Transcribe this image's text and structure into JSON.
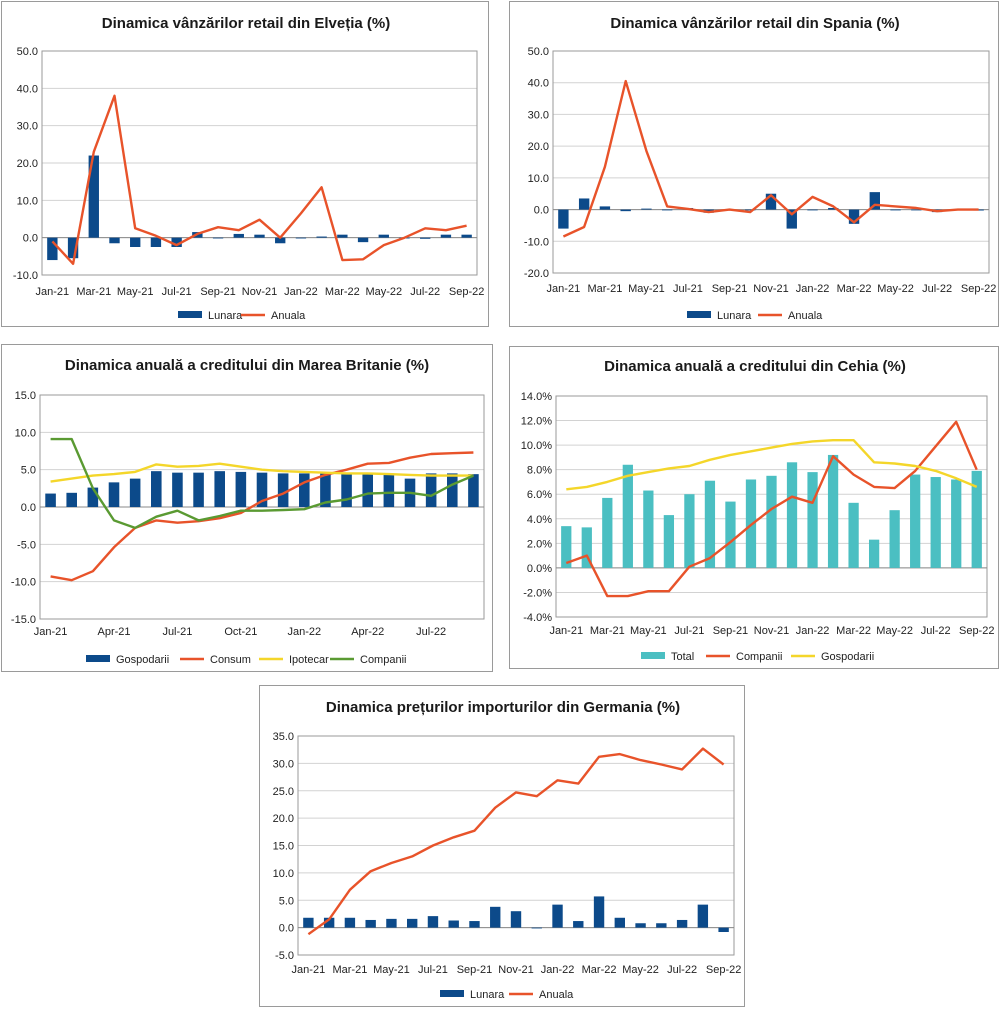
{
  "colors": {
    "navy": "#0c4a8a",
    "orange": "#e8532a",
    "yellow": "#f4d62a",
    "green": "#5a9a32",
    "teal": "#4bbfc2",
    "grid": "#d2d2d2",
    "axis": "#9a9a9a"
  },
  "chart_data": [
    {
      "type": "bar+line",
      "title": "Dinamica vânzărilor retail din Elveția (%)",
      "x": [
        "Jan-21",
        "Feb-21",
        "Mar-21",
        "Apr-21",
        "May-21",
        "Jun-21",
        "Jul-21",
        "Aug-21",
        "Sep-21",
        "Oct-21",
        "Nov-21",
        "Dec-21",
        "Jan-22",
        "Feb-22",
        "Mar-22",
        "Apr-22",
        "May-22",
        "Jun-22",
        "Jul-22",
        "Aug-22",
        "Sep-22"
      ],
      "tick_labels": [
        "Jan-21",
        "Mar-21",
        "May-21",
        "Jul-21",
        "Sep-21",
        "Nov-21",
        "Jan-22",
        "Mar-22",
        "May-22",
        "Jul-22",
        "Sep-22"
      ],
      "y_tick_labels": [
        "-10.0",
        "0.0",
        "10.0",
        "20.0",
        "30.0",
        "40.0",
        "50.0"
      ],
      "ylim": [
        -10,
        50
      ],
      "series": [
        {
          "name": "Lunara",
          "kind": "bar",
          "color": "#0c4a8a",
          "values": [
            -6.0,
            -5.5,
            22.0,
            -1.5,
            -2.5,
            -2.5,
            -2.5,
            1.5,
            0.0,
            1.0,
            0.8,
            -1.5,
            0.0,
            0.3,
            0.8,
            -1.2,
            0.8,
            0.0,
            -0.3,
            0.8,
            0.8
          ]
        },
        {
          "name": "Anuala",
          "kind": "line",
          "color": "#e8532a",
          "values": [
            -1.0,
            -7.0,
            23.0,
            38.0,
            2.5,
            0.5,
            -2.0,
            1.0,
            2.8,
            2.0,
            4.8,
            0.0,
            6.5,
            13.5,
            -6.0,
            -5.8,
            -2.0,
            0.0,
            2.5,
            2.0,
            3.2
          ]
        }
      ]
    },
    {
      "type": "bar+line",
      "title": "Dinamica vânzărilor retail din Spania (%)",
      "x": [
        "Jan-21",
        "Feb-21",
        "Mar-21",
        "Apr-21",
        "May-21",
        "Jun-21",
        "Jul-21",
        "Aug-21",
        "Sep-21",
        "Oct-21",
        "Nov-21",
        "Dec-21",
        "Jan-22",
        "Feb-22",
        "Mar-22",
        "Apr-22",
        "May-22",
        "Jun-22",
        "Jul-22",
        "Aug-22",
        "Sep-22"
      ],
      "tick_labels": [
        "Jan-21",
        "Mar-21",
        "May-21",
        "Jul-21",
        "Sep-21",
        "Nov-21",
        "Jan-22",
        "Mar-22",
        "May-22",
        "Jul-22",
        "Sep-22"
      ],
      "y_tick_labels": [
        "-20.0",
        "-10.0",
        "0.0",
        "10.0",
        "20.0",
        "30.0",
        "40.0",
        "50.0"
      ],
      "ylim": [
        -20,
        50
      ],
      "series": [
        {
          "name": "Lunara",
          "kind": "bar",
          "color": "#0c4a8a",
          "values": [
            -6.0,
            3.5,
            1.0,
            -0.5,
            0.3,
            0.0,
            0.5,
            -1.0,
            0.0,
            0.0,
            5.0,
            -6.0,
            0.0,
            0.5,
            -4.5,
            5.5,
            0.0,
            -0.2,
            -0.8,
            0.0,
            -0.3
          ]
        },
        {
          "name": "Anuala",
          "kind": "line",
          "color": "#e8532a",
          "values": [
            -8.5,
            -5.5,
            13.5,
            40.5,
            18.5,
            1.0,
            0.2,
            -0.8,
            0.0,
            -0.8,
            4.5,
            -1.5,
            4.0,
            1.0,
            -4.0,
            1.5,
            1.0,
            0.5,
            -0.5,
            0.0,
            0.0
          ]
        }
      ]
    },
    {
      "type": "bar+line",
      "title": "Dinamica anuală a creditului din Marea Britanie (%)",
      "x": [
        "Jan-21",
        "Feb-21",
        "Mar-21",
        "Apr-21",
        "May-21",
        "Jun-21",
        "Jul-21",
        "Aug-21",
        "Sep-21",
        "Oct-21",
        "Nov-21",
        "Dec-21",
        "Jan-22",
        "Feb-22",
        "Mar-22",
        "Apr-22",
        "May-22",
        "Jun-22",
        "Jul-22",
        "Aug-22",
        "Sep-22"
      ],
      "tick_labels": [
        "Jan-21",
        "Apr-21",
        "Jul-21",
        "Oct-21",
        "Jan-22",
        "Apr-22",
        "Jul-22"
      ],
      "tick_every": 3,
      "y_tick_labels": [
        "-15.0",
        "-10.0",
        "-5.0",
        "0.0",
        "5.0",
        "10.0",
        "15.0"
      ],
      "ylim": [
        -15,
        15
      ],
      "series": [
        {
          "name": "Gospodarii",
          "kind": "bar",
          "color": "#0c4a8a",
          "values": [
            1.8,
            1.9,
            2.6,
            3.3,
            3.8,
            4.8,
            4.6,
            4.6,
            4.8,
            4.7,
            4.6,
            4.5,
            4.5,
            4.6,
            4.4,
            4.4,
            4.5,
            3.8,
            4.5,
            4.5,
            4.4
          ]
        },
        {
          "name": "Consum",
          "kind": "line",
          "color": "#e8532a",
          "values": [
            -9.3,
            -9.8,
            -8.6,
            -5.4,
            -2.8,
            -1.8,
            -2.1,
            -1.9,
            -1.5,
            -0.8,
            0.8,
            1.8,
            3.3,
            4.3,
            5.0,
            5.8,
            5.9,
            6.6,
            7.1,
            7.2,
            7.3
          ]
        },
        {
          "name": "Ipotecar",
          "kind": "line",
          "color": "#f4d62a",
          "values": [
            3.4,
            3.8,
            4.2,
            4.4,
            4.7,
            5.7,
            5.4,
            5.5,
            5.8,
            5.4,
            5.0,
            4.8,
            4.7,
            4.6,
            4.5,
            4.5,
            4.4,
            4.3,
            4.2,
            4.2,
            4.2
          ]
        },
        {
          "name": "Companii",
          "kind": "line",
          "color": "#5a9a32",
          "values": [
            9.1,
            9.1,
            2.5,
            -1.8,
            -2.8,
            -1.3,
            -0.5,
            -1.8,
            -1.2,
            -0.5,
            -0.5,
            -0.4,
            -0.3,
            0.6,
            1.0,
            1.8,
            1.9,
            1.9,
            1.5,
            3.0,
            4.2
          ]
        }
      ]
    },
    {
      "type": "bar+line",
      "title": "Dinamica anuală a creditului din Cehia (%)",
      "x": [
        "Jan-21",
        "Feb-21",
        "Mar-21",
        "Apr-21",
        "May-21",
        "Jun-21",
        "Jul-21",
        "Aug-21",
        "Sep-21",
        "Oct-21",
        "Nov-21",
        "Dec-21",
        "Jan-22",
        "Feb-22",
        "Mar-22",
        "Apr-22",
        "May-22",
        "Jun-22",
        "Jul-22",
        "Aug-22",
        "Sep-22"
      ],
      "tick_labels": [
        "Jan-21",
        "Mar-21",
        "May-21",
        "Jul-21",
        "Sep-21",
        "Nov-21",
        "Jan-22",
        "Mar-22",
        "May-22",
        "Jul-22",
        "Sep-22"
      ],
      "y_tick_labels": [
        "-4.0%",
        "-2.0%",
        "0.0%",
        "2.0%",
        "4.0%",
        "6.0%",
        "8.0%",
        "10.0%",
        "12.0%",
        "14.0%"
      ],
      "ylim": [
        -4,
        14
      ],
      "series": [
        {
          "name": "Total",
          "kind": "bar",
          "color": "#4bbfc2",
          "values": [
            3.4,
            3.3,
            5.7,
            8.4,
            6.3,
            4.3,
            6.0,
            7.1,
            5.4,
            7.2,
            7.5,
            8.6,
            7.8,
            9.2,
            5.3,
            2.3,
            4.7,
            7.6,
            7.4,
            7.2,
            7.9
          ]
        },
        {
          "name": "Companii",
          "kind": "line",
          "color": "#e8532a",
          "values": [
            0.4,
            1.0,
            -2.3,
            -2.3,
            -1.9,
            -1.9,
            0.1,
            0.8,
            2.1,
            3.5,
            4.8,
            5.8,
            5.3,
            9.1,
            7.6,
            6.6,
            6.5,
            7.9,
            9.9,
            11.9,
            8.0
          ]
        },
        {
          "name": "Gospodarii",
          "kind": "line",
          "color": "#f4d62a",
          "values": [
            6.4,
            6.6,
            7.0,
            7.5,
            7.8,
            8.1,
            8.3,
            8.8,
            9.2,
            9.5,
            9.8,
            10.1,
            10.3,
            10.4,
            10.4,
            8.6,
            8.5,
            8.3,
            7.9,
            7.3,
            6.6
          ]
        }
      ]
    },
    {
      "type": "bar+line",
      "title": "Dinamica prețurilor importurilor din Germania (%)",
      "x": [
        "Jan-21",
        "Feb-21",
        "Mar-21",
        "Apr-21",
        "May-21",
        "Jun-21",
        "Jul-21",
        "Aug-21",
        "Sep-21",
        "Oct-21",
        "Nov-21",
        "Dec-21",
        "Jan-22",
        "Feb-22",
        "Mar-22",
        "Apr-22",
        "May-22",
        "Jun-22",
        "Jul-22",
        "Aug-22",
        "Sep-22"
      ],
      "tick_labels": [
        "Jan-21",
        "Mar-21",
        "May-21",
        "Jul-21",
        "Sep-21",
        "Nov-21",
        "Jan-22",
        "Mar-22",
        "May-22",
        "Jul-22",
        "Sep-22"
      ],
      "y_tick_labels": [
        "-5.0",
        "0.0",
        "5.0",
        "10.0",
        "15.0",
        "20.0",
        "25.0",
        "30.0",
        "35.0"
      ],
      "ylim": [
        -5,
        35
      ],
      "series": [
        {
          "name": "Lunara",
          "kind": "bar",
          "color": "#0c4a8a",
          "values": [
            1.8,
            1.8,
            1.8,
            1.4,
            1.6,
            1.6,
            2.1,
            1.3,
            1.2,
            3.8,
            3.0,
            0.0,
            4.2,
            1.2,
            5.7,
            1.8,
            0.8,
            0.8,
            1.4,
            4.2,
            -0.8
          ]
        },
        {
          "name": "Anuala",
          "kind": "line",
          "color": "#e8532a",
          "values": [
            -1.2,
            1.5,
            6.9,
            10.3,
            11.8,
            13.0,
            15.0,
            16.5,
            17.7,
            21.9,
            24.7,
            24.0,
            26.9,
            26.3,
            31.2,
            31.7,
            30.6,
            29.8,
            28.9,
            32.7,
            29.8
          ]
        }
      ]
    }
  ]
}
